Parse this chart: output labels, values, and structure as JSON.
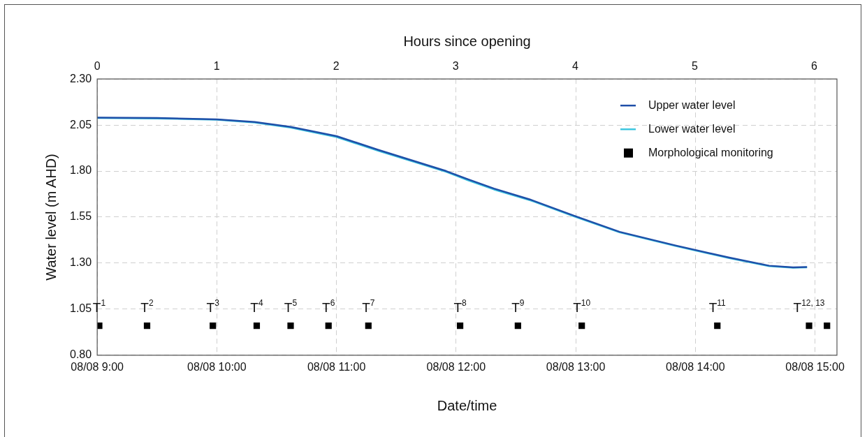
{
  "chart_data": {
    "type": "line",
    "xlabel": "Date/time",
    "x2label": "Hours since opening",
    "ylabel": "Water level (m AHD)",
    "xlim": [
      "--08-08T09:00",
      "--08-08T15:11"
    ],
    "xticks": [
      {
        "value": "--08-08T09:00",
        "label": "08/08 9:00"
      },
      {
        "value": "--08-08T10:00",
        "label": "08/08 10:00"
      },
      {
        "value": "--08-08T11:00",
        "label": "08/08 11:00"
      },
      {
        "value": "--08-08T12:00",
        "label": "08/08 12:00"
      },
      {
        "value": "--08-08T13:00",
        "label": "08/08 13:00"
      },
      {
        "value": "--08-08T14:00",
        "label": "08/08 14:00"
      },
      {
        "value": "--08-08T15:00",
        "label": "08/08 15:00"
      }
    ],
    "x2lim": [
      0,
      6.19
    ],
    "x2ticks": [
      0,
      1,
      2,
      3,
      4,
      5,
      6
    ],
    "ylim": [
      0.8,
      2.3
    ],
    "yticks": [
      {
        "value": 0.8,
        "label": "0.80"
      },
      {
        "value": 1.05,
        "label": "1.05"
      },
      {
        "value": 1.3,
        "label": "1.30"
      },
      {
        "value": 1.55,
        "label": "1.55"
      },
      {
        "value": 1.8,
        "label": "1.80"
      },
      {
        "value": 2.05,
        "label": "2.05"
      },
      {
        "value": 2.3,
        "label": "2.30"
      }
    ],
    "grid": true,
    "legend": "top right",
    "marker": "none",
    "series": [
      {
        "name": "Upper water level",
        "color": "#1f4fa8",
        "x": [
          "--08-08T09:00",
          "--08-08T09:30",
          "--08-08T10:00",
          "--08-08T10:19",
          "--08-08T10:37",
          "--08-08T11:00",
          "--08-08T11:21",
          "--08-08T11:55",
          "--08-08T12:06",
          "--08-08T12:19",
          "--08-08T12:37",
          "--08-08T12:59",
          "--08-08T13:22",
          "--08-08T13:50",
          "--08-08T14:17",
          "--08-08T14:37",
          "--08-08T14:49",
          "--08-08T14:56"
        ],
        "values": [
          2.09,
          2.088,
          2.081,
          2.067,
          2.04,
          1.99,
          1.915,
          1.8,
          1.755,
          1.705,
          1.646,
          1.558,
          1.47,
          1.396,
          1.33,
          1.286,
          1.277,
          1.279
        ]
      },
      {
        "name": "Lower water level",
        "color": "#3ec6e0",
        "x": [
          "--08-08T09:00",
          "--08-08T09:30",
          "--08-08T10:00",
          "--08-08T10:19",
          "--08-08T10:37",
          "--08-08T11:00",
          "--08-08T11:21",
          "--08-08T11:55",
          "--08-08T12:06",
          "--08-08T12:19",
          "--08-08T12:37",
          "--08-08T12:59",
          "--08-08T13:22",
          "--08-08T13:50",
          "--08-08T14:17",
          "--08-08T14:37",
          "--08-08T14:49",
          "--08-08T14:56"
        ],
        "values": [
          2.088,
          2.086,
          2.079,
          2.064,
          2.036,
          1.985,
          1.91,
          1.796,
          1.75,
          1.7,
          1.642,
          1.554,
          1.467,
          1.393,
          1.327,
          1.284,
          1.275,
          1.277
        ]
      },
      {
        "name": "Morphological monitoring",
        "type": "scatter",
        "marker": "square",
        "color": "#000000",
        "x": [
          "--08-08T09:01",
          "--08-08T09:25",
          "--08-08T09:58",
          "--08-08T10:20",
          "--08-08T10:37",
          "--08-08T10:56",
          "--08-08T11:16",
          "--08-08T12:02",
          "--08-08T12:31",
          "--08-08T13:03",
          "--08-08T14:11",
          "--08-08T14:57",
          "--08-08T15:06"
        ],
        "values": [
          0.96,
          0.96,
          0.96,
          0.96,
          0.96,
          0.96,
          0.96,
          0.96,
          0.96,
          0.96,
          0.96,
          0.96,
          0.96
        ]
      }
    ],
    "annotations": [
      {
        "text": "T$^{1}$",
        "x": "--08-08T09:01",
        "y": 0.96
      },
      {
        "text": "T$^{2}$",
        "x": "--08-08T09:25",
        "y": 0.96
      },
      {
        "text": "T$^{3}$",
        "x": "--08-08T09:58",
        "y": 0.96
      },
      {
        "text": "T$^{4}$",
        "x": "--08-08T10:20",
        "y": 0.96
      },
      {
        "text": "T$^{5}$",
        "x": "--08-08T10:37",
        "y": 0.96
      },
      {
        "text": "T$^{6}$",
        "x": "--08-08T10:56",
        "y": 0.96
      },
      {
        "text": "T$^{7}$",
        "x": "--08-08T11:16",
        "y": 0.96
      },
      {
        "text": "T$^{8}$",
        "x": "--08-08T12:02",
        "y": 0.96
      },
      {
        "text": "T$^{9}$",
        "x": "--08-08T12:31",
        "y": 0.96
      },
      {
        "text": "T$^{10}$",
        "x": "--08-08T13:03",
        "y": 0.96
      },
      {
        "text": "T$^{11}$",
        "x": "--08-08T14:11",
        "y": 0.96
      },
      {
        "text": "T$^{12, 13}$",
        "x": "--08-08T14:57",
        "y": 0.96
      }
    ]
  }
}
